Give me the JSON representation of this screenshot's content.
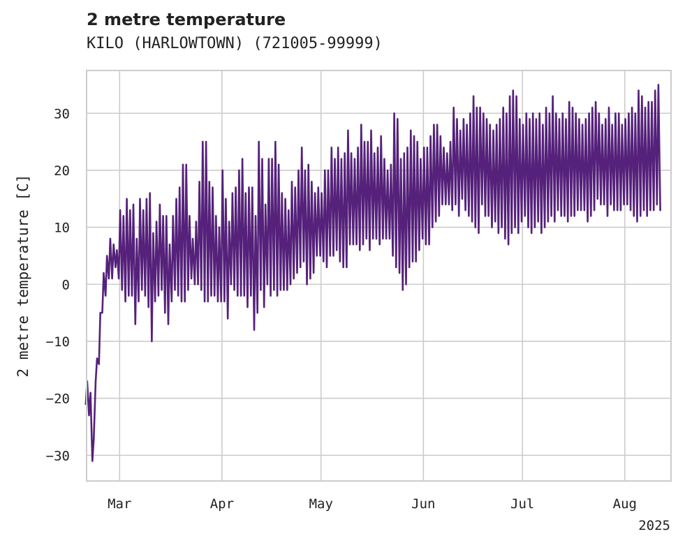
{
  "chart_data": {
    "type": "line",
    "title": "2 metre temperature",
    "subtitle": "KILO (HARLOWTOWN) (721005-99999)",
    "xlabel": "",
    "ylabel": "2 metre temperature [C]",
    "xlim": [
      "2025-02-19",
      "2025-08-15"
    ],
    "ylim": [
      -34.5,
      37.5
    ],
    "x_tick_labels": [
      "Mar",
      "Apr",
      "May",
      "Jun",
      "Jul",
      "Aug"
    ],
    "x_tick_dates": [
      "2025-03-01",
      "2025-04-01",
      "2025-05-01",
      "2025-06-01",
      "2025-07-01",
      "2025-08-01"
    ],
    "x_offset_label": "2025",
    "y_ticks": [
      -30,
      -20,
      -10,
      0,
      10,
      20,
      30
    ],
    "grid": true,
    "legend": "none",
    "color": "#55217a",
    "series": [
      {
        "x": [
          "2025-02-19",
          "2025-02-20",
          "2025-02-21",
          "2025-02-22",
          "2025-02-23",
          "2025-02-24",
          "2025-02-25",
          "2025-02-26",
          "2025-02-27",
          "2025-02-28",
          "2025-03-01",
          "2025-03-02",
          "2025-03-03",
          "2025-03-04",
          "2025-03-05",
          "2025-03-06",
          "2025-03-07",
          "2025-03-08",
          "2025-03-09",
          "2025-03-10",
          "2025-03-11",
          "2025-03-12",
          "2025-03-13",
          "2025-03-14",
          "2025-03-15",
          "2025-03-16",
          "2025-03-17",
          "2025-03-18",
          "2025-03-19",
          "2025-03-20",
          "2025-03-21",
          "2025-03-22",
          "2025-03-23",
          "2025-03-24",
          "2025-03-25",
          "2025-03-26",
          "2025-03-27",
          "2025-03-28",
          "2025-03-29",
          "2025-03-30",
          "2025-03-31",
          "2025-04-01",
          "2025-04-02",
          "2025-04-03",
          "2025-04-04",
          "2025-04-05",
          "2025-04-06",
          "2025-04-07",
          "2025-04-08",
          "2025-04-09",
          "2025-04-10",
          "2025-04-11",
          "2025-04-12",
          "2025-04-13",
          "2025-04-14",
          "2025-04-15",
          "2025-04-16",
          "2025-04-17",
          "2025-04-18",
          "2025-04-19",
          "2025-04-20",
          "2025-04-21",
          "2025-04-22",
          "2025-04-23",
          "2025-04-24",
          "2025-04-25",
          "2025-04-26",
          "2025-04-27",
          "2025-04-28",
          "2025-04-29",
          "2025-04-30",
          "2025-05-01",
          "2025-05-02",
          "2025-05-03",
          "2025-05-04",
          "2025-05-05",
          "2025-05-06",
          "2025-05-07",
          "2025-05-08",
          "2025-05-09",
          "2025-05-10",
          "2025-05-11",
          "2025-05-12",
          "2025-05-13",
          "2025-05-14",
          "2025-05-15",
          "2025-05-16",
          "2025-05-17",
          "2025-05-18",
          "2025-05-19",
          "2025-05-20",
          "2025-05-21",
          "2025-05-22",
          "2025-05-23",
          "2025-05-24",
          "2025-05-25",
          "2025-05-26",
          "2025-05-27",
          "2025-05-28",
          "2025-05-29",
          "2025-05-30",
          "2025-05-31",
          "2025-06-01",
          "2025-06-02",
          "2025-06-03",
          "2025-06-04",
          "2025-06-05",
          "2025-06-06",
          "2025-06-07",
          "2025-06-08",
          "2025-06-09",
          "2025-06-10",
          "2025-06-11",
          "2025-06-12",
          "2025-06-13",
          "2025-06-14",
          "2025-06-15",
          "2025-06-16",
          "2025-06-17",
          "2025-06-18",
          "2025-06-19",
          "2025-06-20",
          "2025-06-21",
          "2025-06-22",
          "2025-06-23",
          "2025-06-24",
          "2025-06-25",
          "2025-06-26",
          "2025-06-27",
          "2025-06-28",
          "2025-06-29",
          "2025-06-30",
          "2025-07-01",
          "2025-07-02",
          "2025-07-03",
          "2025-07-04",
          "2025-07-05",
          "2025-07-06",
          "2025-07-07",
          "2025-07-08",
          "2025-07-09",
          "2025-07-10",
          "2025-07-11",
          "2025-07-12",
          "2025-07-13",
          "2025-07-14",
          "2025-07-15",
          "2025-07-16",
          "2025-07-17",
          "2025-07-18",
          "2025-07-19",
          "2025-07-20",
          "2025-07-21",
          "2025-07-22",
          "2025-07-23",
          "2025-07-24",
          "2025-07-25",
          "2025-07-26",
          "2025-07-27",
          "2025-07-28",
          "2025-07-29",
          "2025-07-30",
          "2025-07-31",
          "2025-08-01",
          "2025-08-02",
          "2025-08-03",
          "2025-08-04",
          "2025-08-05",
          "2025-08-06",
          "2025-08-07",
          "2025-08-08",
          "2025-08-09",
          "2025-08-10",
          "2025-08-11",
          "2025-08-12",
          "2025-08-13",
          "2025-08-14"
        ],
        "daily_min": [
          -21,
          -23,
          -31,
          -17,
          -14,
          -5,
          -2,
          1,
          1,
          3,
          1,
          -1,
          -3,
          -2,
          -2,
          -7,
          -3,
          -1,
          -2,
          -4,
          -10,
          -3,
          -2,
          -1,
          -5,
          -7,
          -3,
          -1,
          -2,
          -3,
          -3,
          -1,
          1,
          0,
          0,
          -1,
          -3,
          -3,
          -2,
          -2,
          -3,
          -3,
          -3,
          -6,
          0,
          -1,
          -2,
          -2,
          -2,
          -4,
          -2,
          -8,
          -5,
          -1,
          -4,
          0,
          -2,
          -1,
          -2,
          -1,
          -1,
          -1,
          0,
          1,
          2,
          3,
          4,
          0,
          1,
          2,
          5,
          5,
          4,
          3,
          5,
          5,
          6,
          4,
          3,
          3,
          7,
          7,
          7,
          6,
          7,
          8,
          6,
          8,
          8,
          7,
          8,
          8,
          8,
          5,
          3,
          2,
          -1,
          0,
          3,
          4,
          4,
          6,
          8,
          7,
          7,
          10,
          11,
          12,
          14,
          14,
          14,
          13,
          14,
          12,
          15,
          13,
          12,
          11,
          10,
          9,
          14,
          12,
          12,
          10,
          11,
          9,
          10,
          8,
          7,
          9,
          10,
          9,
          11,
          12,
          10,
          9,
          10,
          11,
          9,
          10,
          11,
          12,
          11,
          13,
          12,
          12,
          11,
          12,
          12,
          13,
          13,
          13,
          11,
          12,
          13,
          15,
          14,
          14,
          12,
          14,
          13,
          13,
          13,
          14,
          14,
          13,
          12,
          11,
          12,
          13,
          12,
          13,
          13,
          14,
          13,
          15,
          14
        ],
        "daily_max": [
          -17,
          -19,
          -27,
          -13,
          -5,
          2,
          5,
          8,
          7,
          6,
          13,
          12,
          15,
          13,
          14,
          8,
          15,
          13,
          15,
          16,
          9,
          11,
          14,
          12,
          12,
          7,
          12,
          15,
          17,
          21,
          21,
          12,
          8,
          11,
          18,
          25,
          25,
          18,
          17,
          12,
          10,
          20,
          15,
          11,
          16,
          17,
          20,
          22,
          16,
          17,
          17,
          12,
          25,
          22,
          14,
          22,
          22,
          25,
          21,
          16,
          15,
          13,
          18,
          17,
          20,
          24,
          20,
          21,
          18,
          16,
          17,
          16,
          20,
          20,
          24,
          22,
          24,
          22,
          23,
          27,
          23,
          22,
          24,
          28,
          25,
          25,
          27,
          23,
          24,
          26,
          22,
          20,
          21,
          30,
          29,
          22,
          23,
          24,
          27,
          26,
          25,
          22,
          24,
          24,
          26,
          28,
          28,
          26,
          24,
          23,
          25,
          31,
          29,
          27,
          29,
          28,
          30,
          33,
          31,
          31,
          30,
          29,
          28,
          27,
          28,
          29,
          31,
          30,
          33,
          34,
          33,
          29,
          28,
          30,
          29,
          30,
          29,
          30,
          28,
          31,
          30,
          33,
          30,
          29,
          30,
          29,
          32,
          31,
          30,
          29,
          28,
          29,
          30,
          31,
          32,
          30,
          28,
          29,
          31,
          28,
          30,
          30,
          28,
          29,
          30,
          31,
          30,
          34,
          33,
          31,
          32,
          32,
          34,
          35
        ]
      }
    ]
  }
}
